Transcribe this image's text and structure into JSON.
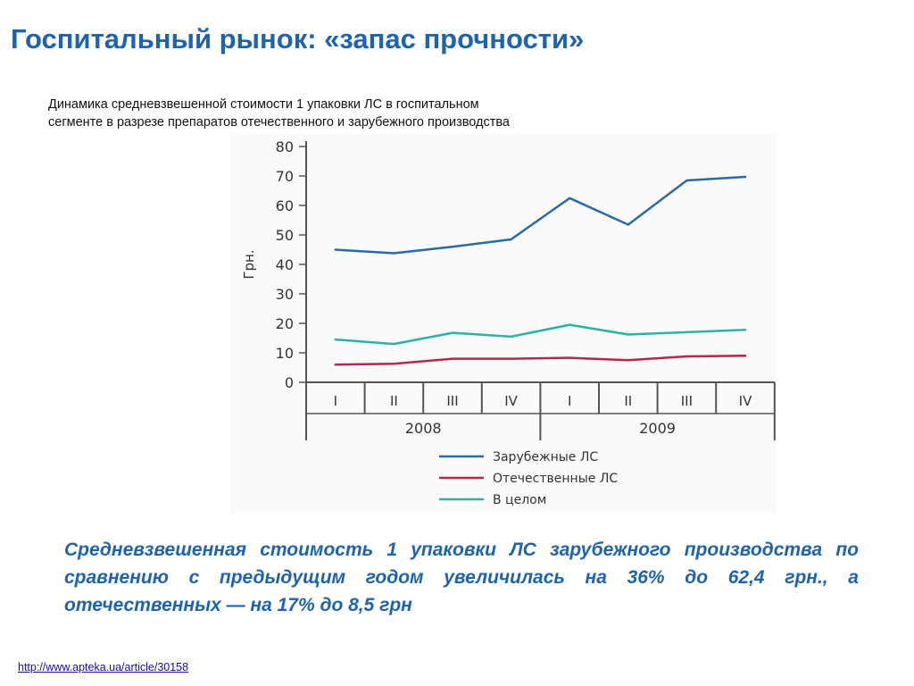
{
  "slide": {
    "title": "Госпитальный рынок: «запас прочности»",
    "caption_line1": "Динамика средневзвешенной стоимости 1 упаковки ЛС в госпитальном",
    "caption_line2": "сегменте в разрезе препаратов отечественного и зарубежного производства",
    "conclusion": "Средневзвешенная стоимость 1 упаковки ЛС зарубежного производства по сравнению с предыдущим годом увеличилась на 36% до 62,4 грн., а отечественных — на 17% до 8,5 грн",
    "source_link": "http://www.apteka.ua/article/30158"
  },
  "chart_data": {
    "type": "line",
    "title": "",
    "ylabel": "Грн.",
    "xlabel": "",
    "ylim": [
      0,
      80
    ],
    "yticks": [
      0,
      10,
      20,
      30,
      40,
      50,
      60,
      70,
      80
    ],
    "categories": [
      "I",
      "II",
      "III",
      "IV",
      "I",
      "II",
      "III",
      "IV"
    ],
    "years": [
      {
        "label": "2008",
        "span": [
          0,
          3
        ]
      },
      {
        "label": "2009",
        "span": [
          4,
          7
        ]
      }
    ],
    "grid": false,
    "legend_position": "bottom",
    "series": [
      {
        "name": "Зарубежные ЛС",
        "color": "#2a6aa5",
        "values": [
          45,
          43.8,
          46,
          48.5,
          62.5,
          53.5,
          68.5,
          69.7
        ]
      },
      {
        "name": "Отечественные ЛС",
        "color": "#b3294e",
        "values": [
          6,
          6.3,
          8,
          8,
          8.3,
          7.5,
          8.8,
          9
        ]
      },
      {
        "name": "В целом",
        "color": "#2ab3a3",
        "values": [
          14.5,
          13,
          16.8,
          15.5,
          19.5,
          16.2,
          17,
          17.8
        ]
      }
    ]
  }
}
